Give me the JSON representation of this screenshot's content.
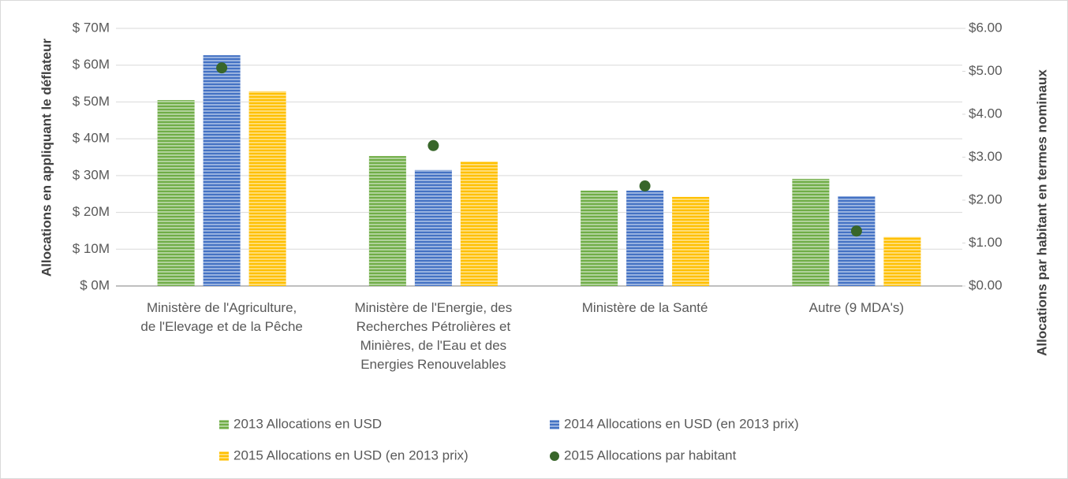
{
  "chart_data": {
    "type": "bar",
    "categories": [
      "Ministère de l'Agriculture,\nde l'Elevage et de la Pêche",
      "Ministère de l'Energie, des\nRecherches Pétrolières et\nMinières, de l'Eau et des\nEnergies Renouvelables",
      "Ministère de la Santé",
      "Autre (9 MDA's)"
    ],
    "series": [
      {
        "name": "2013 Allocations en USD",
        "color": "#70ad47",
        "values": [
          50.5,
          35.3,
          25.9,
          29.1
        ]
      },
      {
        "name": "2014 Allocations en USD (en 2013 prix)",
        "color": "#4472c4",
        "values": [
          62.7,
          31.5,
          25.9,
          24.4
        ]
      },
      {
        "name": "2015 Allocations en USD (en 2013 prix)",
        "color": "#ffc000",
        "values": [
          52.9,
          33.8,
          24.2,
          13.3
        ]
      },
      {
        "name": "2015 Allocations par habitant",
        "color": "#38662a",
        "type": "scatter",
        "axis": "y2",
        "values": [
          5.08,
          3.27,
          2.33,
          1.28
        ]
      }
    ],
    "ylabel": "Allocations en appliquant le déflateur",
    "y2label": "Allocations par habitant en termes nominaux",
    "ylim": [
      0,
      70
    ],
    "yticks": [
      {
        "value": 0,
        "label": "$ 0M"
      },
      {
        "value": 10,
        "label": "$ 10M"
      },
      {
        "value": 20,
        "label": "$ 20M"
      },
      {
        "value": 30,
        "label": "$ 30M"
      },
      {
        "value": 40,
        "label": "$ 40M"
      },
      {
        "value": 50,
        "label": "$ 50M"
      },
      {
        "value": 60,
        "label": "$ 60M"
      },
      {
        "value": 70,
        "label": "$ 70M"
      }
    ],
    "y2lim": [
      0,
      6
    ],
    "y2ticks": [
      {
        "value": 0,
        "label": "$0.00"
      },
      {
        "value": 1,
        "label": "$1.00"
      },
      {
        "value": 2,
        "label": "$2.00"
      },
      {
        "value": 3,
        "label": "$3.00"
      },
      {
        "value": 4,
        "label": "$4.00"
      },
      {
        "value": 5,
        "label": "$5.00"
      },
      {
        "value": 6,
        "label": "$6.00"
      }
    ],
    "grid": true,
    "legend": "bottom"
  }
}
